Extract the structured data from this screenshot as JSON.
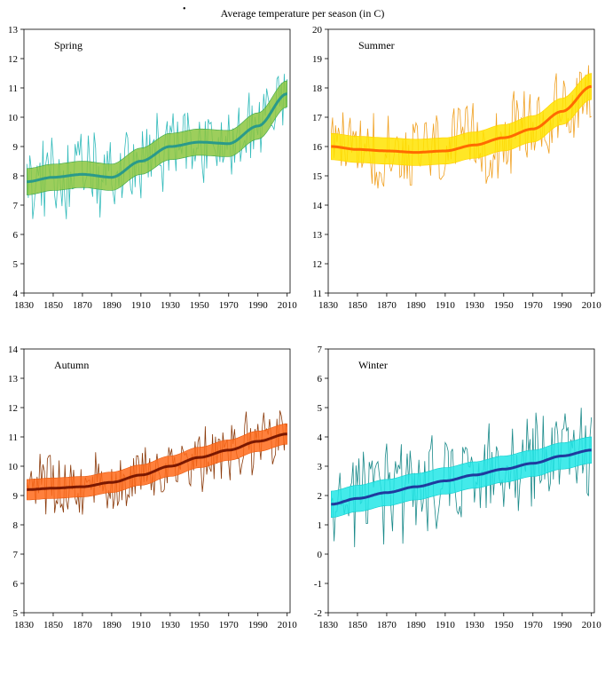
{
  "figure": {
    "title": "Average temperature per season (in  C)"
  },
  "chart_data": [
    {
      "type": "line",
      "panel_label": "Spring",
      "x_ticks": [
        "1830",
        "1850",
        "1870",
        "1890",
        "1910",
        "1930",
        "1950",
        "1970",
        "1990",
        "2010"
      ],
      "y_ticks": [
        "4",
        "5",
        "6",
        "7",
        "8",
        "9",
        "10",
        "11",
        "12",
        "13"
      ],
      "xlim": [
        1830,
        2012
      ],
      "ylim": [
        4,
        13
      ],
      "colors": {
        "raw": "#33bbbb",
        "band": "#8cc63f",
        "band_edge": "#3aa64a",
        "trend": "#2a9a8a"
      },
      "series": [
        {
          "x": [
            1832,
            1850,
            1870,
            1890,
            1910,
            1930,
            1950,
            1970,
            1990,
            2010
          ],
          "values": [
            7.8,
            7.95,
            8.05,
            7.95,
            8.5,
            9.0,
            9.15,
            9.1,
            9.7,
            10.8
          ]
        }
      ]
    },
    {
      "type": "line",
      "panel_label": "Summer",
      "x_ticks": [
        "1830",
        "1850",
        "1870",
        "1890",
        "1910",
        "1930",
        "1950",
        "1970",
        "1990",
        "2010"
      ],
      "y_ticks": [
        "11",
        "12",
        "13",
        "14",
        "15",
        "16",
        "17",
        "18",
        "19",
        "20"
      ],
      "xlim": [
        1830,
        2012
      ],
      "ylim": [
        11,
        20
      ],
      "colors": {
        "raw": "#f0a020",
        "band": "#ffe300",
        "band_edge": "#ffd000",
        "trend": "#ff6a00"
      },
      "series": [
        {
          "x": [
            1832,
            1850,
            1870,
            1890,
            1910,
            1930,
            1950,
            1970,
            1990,
            2010
          ],
          "values": [
            16.0,
            15.9,
            15.85,
            15.8,
            15.85,
            16.05,
            16.3,
            16.6,
            17.2,
            18.05
          ]
        }
      ]
    },
    {
      "type": "line",
      "panel_label": "Autumn",
      "x_ticks": [
        "1830",
        "1850",
        "1870",
        "1890",
        "1910",
        "1930",
        "1950",
        "1970",
        "1990",
        "2010"
      ],
      "y_ticks": [
        "5",
        "6",
        "7",
        "8",
        "9",
        "10",
        "11",
        "12",
        "13",
        "14"
      ],
      "xlim": [
        1830,
        2012
      ],
      "ylim": [
        5,
        14
      ],
      "colors": {
        "raw": "#8b3a0a",
        "band": "#ff6a1a",
        "band_edge": "#e85a10",
        "trend": "#7a1800"
      },
      "series": [
        {
          "x": [
            1832,
            1850,
            1870,
            1890,
            1910,
            1930,
            1950,
            1970,
            1990,
            2010
          ],
          "values": [
            9.2,
            9.25,
            9.3,
            9.45,
            9.7,
            10.0,
            10.3,
            10.55,
            10.85,
            11.1
          ]
        }
      ]
    },
    {
      "type": "line",
      "panel_label": "Winter",
      "x_ticks": [
        "1830",
        "1850",
        "1870",
        "1890",
        "1910",
        "1930",
        "1950",
        "1970",
        "1990",
        "2010"
      ],
      "y_ticks": [
        "-2",
        "-1",
        "0",
        "1",
        "2",
        "3",
        "4",
        "5",
        "6",
        "7"
      ],
      "xlim": [
        1830,
        2012
      ],
      "ylim": [
        -2,
        7
      ],
      "colors": {
        "raw": "#1a8a8a",
        "band": "#22e6e6",
        "band_edge": "#10cccc",
        "trend": "#1f3a9e"
      },
      "series": [
        {
          "x": [
            1832,
            1850,
            1870,
            1890,
            1910,
            1930,
            1950,
            1970,
            1990,
            2010
          ],
          "values": [
            1.7,
            1.9,
            2.1,
            2.3,
            2.5,
            2.7,
            2.9,
            3.1,
            3.35,
            3.55
          ]
        }
      ]
    }
  ]
}
